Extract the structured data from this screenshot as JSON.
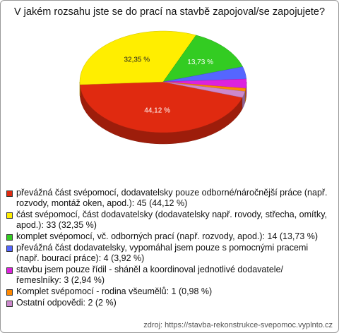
{
  "chart_data": {
    "type": "pie",
    "title": "V jakém rozsahu jste se do prací na stavbě zapojoval/se zapojujete?",
    "categories": [
      "převážná část svépomocí, dodavatelsky pouze odborné/náročnější práce (např. rozvody, montáž oken, apod.): 45 (44,12 %)",
      "část svépomocí, část dodavatelsky (dodavatelsky např. rovody, střecha, omítky, apod.): 33 (32,35 %)",
      "komplet svépomocí, vč. odborných prací (např. rozvody, apod.): 14 (13,73 %)",
      "převážná část dodavatelsky, vypomáhal jsem pouze s pomocnými pracemi (např. bourací práce): 4 (3,92 %)",
      "stavbu jsem pouze řídil - sháněl a koordinoval jednotlivé dodavatele/řemeslníky: 3 (2,94 %)",
      "Komplet svépomocí - rodina všeumělů: 1 (0,98 %)",
      "Ostatní odpovědi: 2 (2 %)"
    ],
    "values": [
      44.12,
      32.35,
      13.73,
      3.92,
      2.94,
      0.98,
      1.96
    ],
    "value_labels": [
      "44,12 %",
      "32,35 %",
      "13,73 %",
      null,
      null,
      null,
      null
    ],
    "colors": [
      "#e02a10",
      "#ffee00",
      "#33cc22",
      "#5566ff",
      "#dd22dd",
      "#ff8800",
      "#cc88cc"
    ],
    "source": "zdroj: https://stavba-rekonstrukce-svepomoc.vyplnto.cz"
  }
}
